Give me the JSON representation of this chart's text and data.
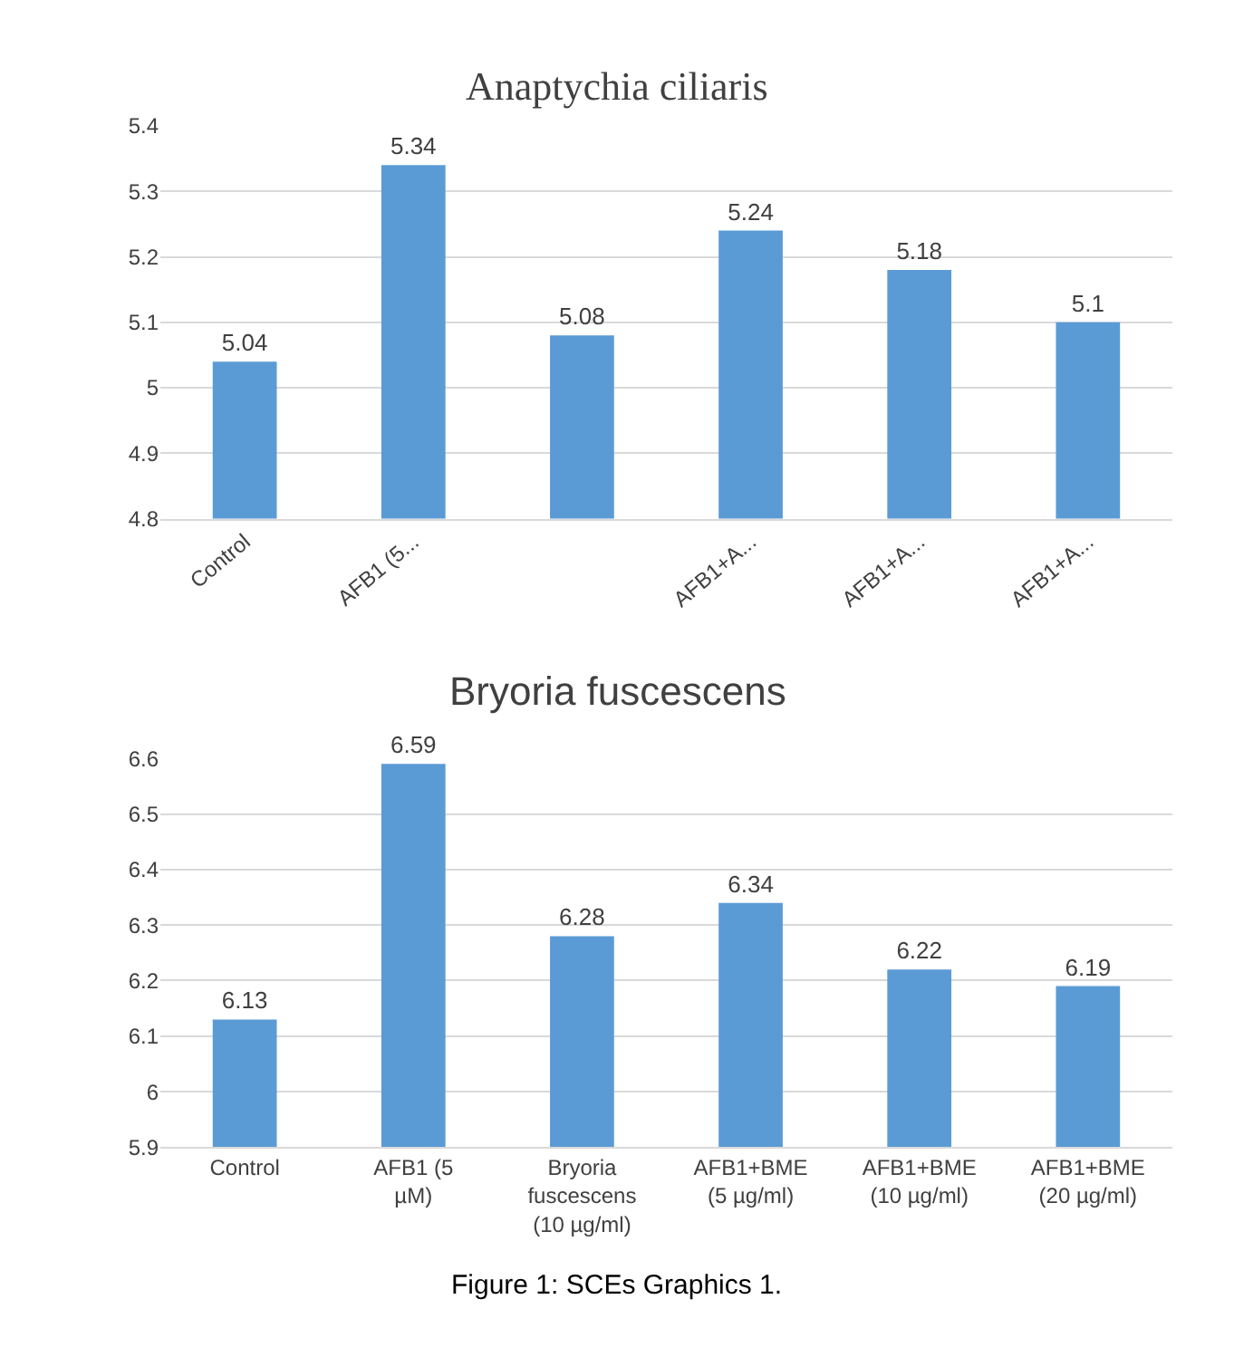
{
  "chart_data": [
    {
      "type": "bar",
      "title": "Anaptychia ciliaris",
      "categories": [
        "Control",
        "AFB1 (5...",
        null,
        "AFB1+A...",
        "AFB1+A...",
        "AFB1+A..."
      ],
      "values": [
        5.04,
        5.34,
        5.08,
        5.24,
        5.18,
        5.1
      ],
      "color": "#5b9bd5",
      "ylim": [
        4.8,
        5.4
      ],
      "yticks": [
        4.8,
        4.9,
        5,
        5.1,
        5.2,
        5.3,
        5.4
      ],
      "grid": "y",
      "data_labels": true
    },
    {
      "type": "bar",
      "title": "Bryoria fuscescens",
      "categories": [
        "Control",
        "AFB1 (5\nµM)",
        "Bryoria\nfuscescens\n(10 µg/ml)",
        "AFB1+BME\n(5 µg/ml)",
        "AFB1+BME\n(10 µg/ml)",
        "AFB1+BME\n(20 µg/ml)"
      ],
      "values": [
        6.13,
        6.59,
        6.28,
        6.34,
        6.22,
        6.19
      ],
      "color": "#5b9bd5",
      "ylim": [
        5.9,
        6.6
      ],
      "yticks": [
        5.9,
        6,
        6.1,
        6.2,
        6.3,
        6.4,
        6.5,
        6.6
      ],
      "grid": "y",
      "data_labels": true,
      "annotations": [
        "Figure 1: SCEs Graphics 1."
      ]
    }
  ]
}
